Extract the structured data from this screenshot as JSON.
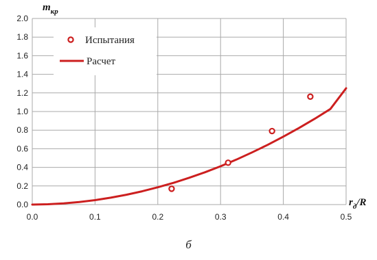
{
  "caption": "б",
  "chart_data": {
    "type": "scatter+line",
    "ylabel": {
      "main": "m",
      "sub": "кр"
    },
    "xlabel": {
      "main": "r",
      "sub": "д",
      "suffix": "/R"
    },
    "xlim": [
      0.0,
      0.5
    ],
    "ylim": [
      0.0,
      2.0
    ],
    "x_ticks": [
      "0.0",
      "0.1",
      "0.2",
      "0.3",
      "0.4",
      "0.5"
    ],
    "y_ticks": [
      "0.0",
      "0.2",
      "0.4",
      "0.6",
      "0.8",
      "1.0",
      "1.2",
      "1.4",
      "1.6",
      "1.8",
      "2.0"
    ],
    "grid": true,
    "legend_position": "top-left",
    "series": [
      {
        "name": "Испытания",
        "type": "scatter",
        "color": "#cc1f1f",
        "x": [
          0.222,
          0.312,
          0.382,
          0.443
        ],
        "y": [
          0.17,
          0.45,
          0.79,
          1.16
        ]
      },
      {
        "name": "Расчет",
        "type": "line",
        "color": "#cc1f1f",
        "x": [
          0.0,
          0.025,
          0.05,
          0.075,
          0.1,
          0.125,
          0.15,
          0.175,
          0.2,
          0.225,
          0.25,
          0.275,
          0.3,
          0.325,
          0.35,
          0.375,
          0.4,
          0.425,
          0.45,
          0.475,
          0.5
        ],
        "y": [
          0.0,
          0.004,
          0.013,
          0.028,
          0.048,
          0.074,
          0.106,
          0.143,
          0.186,
          0.234,
          0.288,
          0.347,
          0.412,
          0.483,
          0.56,
          0.642,
          0.73,
          0.823,
          0.922,
          1.027,
          1.25
        ]
      }
    ]
  }
}
